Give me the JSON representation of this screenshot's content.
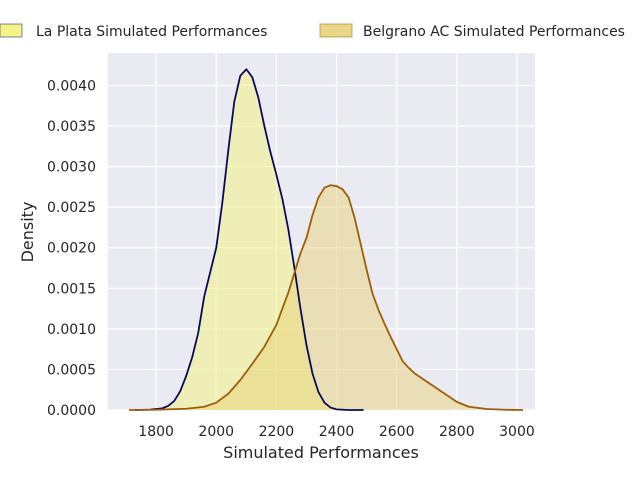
{
  "chart_data": {
    "type": "area",
    "title": "",
    "xlabel": "Simulated Performances",
    "ylabel": "Density",
    "xlim": [
      1640,
      3060
    ],
    "ylim": [
      0,
      0.0044
    ],
    "x_ticks": [
      1800,
      2000,
      2200,
      2400,
      2600,
      2800,
      3000
    ],
    "y_ticks": [
      0.0,
      0.0005,
      0.001,
      0.0015,
      0.002,
      0.0025,
      0.003,
      0.0035,
      0.004
    ],
    "y_tick_labels": [
      "0.0000",
      "0.0005",
      "0.0010",
      "0.0015",
      "0.0020",
      "0.0025",
      "0.0030",
      "0.0035",
      "0.0040"
    ],
    "grid": true,
    "legend_position": "top",
    "background": "#eaeaf2",
    "series": [
      {
        "name": "La Plata Simulated Performances",
        "line_color": "#0a0a5c",
        "fill_color": "#f2f27a",
        "fill_alpha": 0.5,
        "points": [
          [
            1730,
            0.0
          ],
          [
            1780,
            5e-06
          ],
          [
            1820,
            2e-05
          ],
          [
            1840,
            5e-05
          ],
          [
            1860,
            0.00011
          ],
          [
            1880,
            0.00023
          ],
          [
            1900,
            0.00042
          ],
          [
            1920,
            0.00065
          ],
          [
            1940,
            0.00095
          ],
          [
            1960,
            0.0014
          ],
          [
            1980,
            0.0017
          ],
          [
            2000,
            0.002
          ],
          [
            2020,
            0.00255
          ],
          [
            2040,
            0.0032
          ],
          [
            2060,
            0.0038
          ],
          [
            2080,
            0.00412
          ],
          [
            2100,
            0.0042
          ],
          [
            2120,
            0.0041
          ],
          [
            2140,
            0.00385
          ],
          [
            2160,
            0.0035
          ],
          [
            2180,
            0.00318
          ],
          [
            2200,
            0.0029
          ],
          [
            2220,
            0.0026
          ],
          [
            2240,
            0.00222
          ],
          [
            2260,
            0.00175
          ],
          [
            2280,
            0.00125
          ],
          [
            2300,
            0.0008
          ],
          [
            2320,
            0.00045
          ],
          [
            2340,
            0.00022
          ],
          [
            2360,
            9e-05
          ],
          [
            2380,
            3e-05
          ],
          [
            2400,
            8e-06
          ],
          [
            2440,
            0.0
          ],
          [
            2490,
            0.0
          ]
        ]
      },
      {
        "name": "Belgrano AC Simulated Performances",
        "line_color": "#9e5e08",
        "fill_color": "#e8d27a",
        "fill_alpha": 0.5,
        "points": [
          [
            1710,
            0.0
          ],
          [
            1800,
            3e-06
          ],
          [
            1900,
            1.5e-05
          ],
          [
            1960,
            4e-05
          ],
          [
            2000,
            9e-05
          ],
          [
            2040,
            0.0002
          ],
          [
            2080,
            0.00037
          ],
          [
            2120,
            0.00057
          ],
          [
            2160,
            0.00078
          ],
          [
            2200,
            0.00105
          ],
          [
            2240,
            0.00145
          ],
          [
            2280,
            0.00193
          ],
          [
            2300,
            0.00212
          ],
          [
            2320,
            0.0024
          ],
          [
            2340,
            0.00262
          ],
          [
            2360,
            0.00274
          ],
          [
            2380,
            0.00277
          ],
          [
            2400,
            0.00276
          ],
          [
            2420,
            0.00272
          ],
          [
            2440,
            0.00262
          ],
          [
            2460,
            0.00237
          ],
          [
            2480,
            0.00205
          ],
          [
            2500,
            0.00173
          ],
          [
            2520,
            0.00143
          ],
          [
            2540,
            0.00123
          ],
          [
            2560,
            0.00106
          ],
          [
            2580,
            0.0009
          ],
          [
            2600,
            0.00075
          ],
          [
            2620,
            0.0006
          ],
          [
            2640,
            0.00052
          ],
          [
            2660,
            0.00045
          ],
          [
            2680,
            0.0004
          ],
          [
            2700,
            0.00035
          ],
          [
            2720,
            0.0003
          ],
          [
            2760,
            0.0002
          ],
          [
            2800,
            0.0001
          ],
          [
            2840,
            4e-05
          ],
          [
            2900,
            1.2e-05
          ],
          [
            2960,
            3e-06
          ],
          [
            3020,
            0.0
          ]
        ]
      }
    ]
  }
}
